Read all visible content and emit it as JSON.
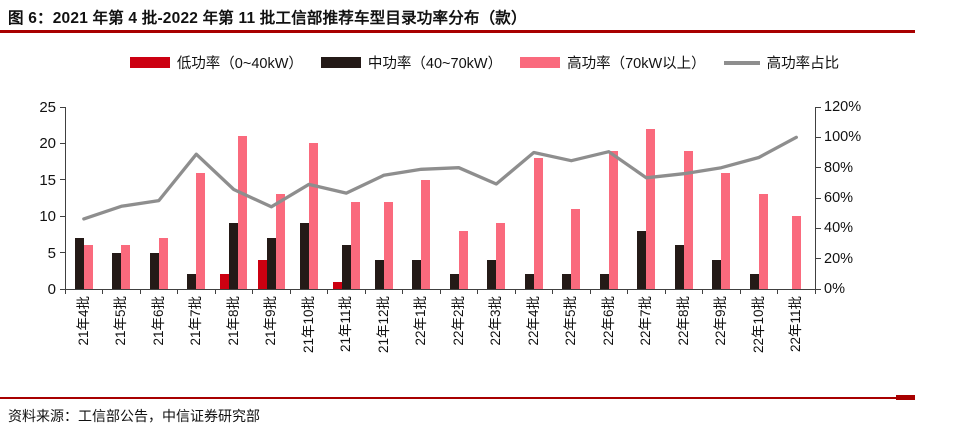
{
  "title": "图 6：2021 年第 4 批-2022 年第 11 批工信部推荐车型目录功率分布（款）",
  "footer": {
    "source": "资料来源：工信部公告，中信证券研究部"
  },
  "colors": {
    "accent_red_rule": "#A80000",
    "low_power_red": "#CC0011",
    "mid_power_black": "#241A17",
    "high_power_pink": "#FA6A7D",
    "ratio_line_gray": "#8E8E8E",
    "axis": "#404040",
    "text": "#111111"
  },
  "chart_data": {
    "type": "bar",
    "categories": [
      "21年4批",
      "21年5批",
      "21年6批",
      "21年7批",
      "21年8批",
      "21年9批",
      "21年10批",
      "21年11批",
      "21年12批",
      "22年1批",
      "22年2批",
      "22年3批",
      "22年4批",
      "22年5批",
      "22年6批",
      "22年7批",
      "22年8批",
      "22年9批",
      "22年10批",
      "22年11批"
    ],
    "series": [
      {
        "name": "低功率（0~40kW）",
        "type": "bar",
        "color": "#CC0011",
        "axis": "left",
        "values": [
          0,
          0,
          0,
          0,
          2,
          4,
          0,
          1,
          0,
          0,
          0,
          0,
          0,
          0,
          0,
          0,
          0,
          0,
          0,
          0
        ]
      },
      {
        "name": "中功率（40~70kW）",
        "type": "bar",
        "color": "#241A17",
        "axis": "left",
        "values": [
          7,
          5,
          5,
          2,
          9,
          7,
          9,
          6,
          4,
          4,
          2,
          4,
          2,
          2,
          2,
          8,
          6,
          4,
          2,
          0
        ]
      },
      {
        "name": "高功率（70kW以上）",
        "type": "bar",
        "color": "#FA6A7D",
        "axis": "left",
        "values": [
          6,
          6,
          7,
          16,
          21,
          13,
          20,
          12,
          12,
          15,
          8,
          9,
          18,
          11,
          19,
          22,
          19,
          16,
          13,
          10
        ]
      },
      {
        "name": "高功率占比",
        "type": "line",
        "color": "#8E8E8E",
        "axis": "right",
        "values": [
          46.2,
          54.5,
          58.3,
          88.9,
          65.6,
          54.2,
          69.0,
          63.2,
          75.0,
          78.9,
          80.0,
          69.2,
          90.0,
          84.6,
          90.5,
          73.3,
          76.0,
          80.0,
          86.7,
          100.0
        ]
      }
    ],
    "left_axis": {
      "min": 0,
      "max": 25,
      "ticks": [
        "25",
        "20",
        "15",
        "10",
        "5",
        "0"
      ]
    },
    "right_axis": {
      "min": 0,
      "max": 120,
      "ticks": [
        "120%",
        "100%",
        "80%",
        "60%",
        "40%",
        "20%",
        "0%"
      ]
    },
    "grid": false,
    "legend_position": "top"
  }
}
